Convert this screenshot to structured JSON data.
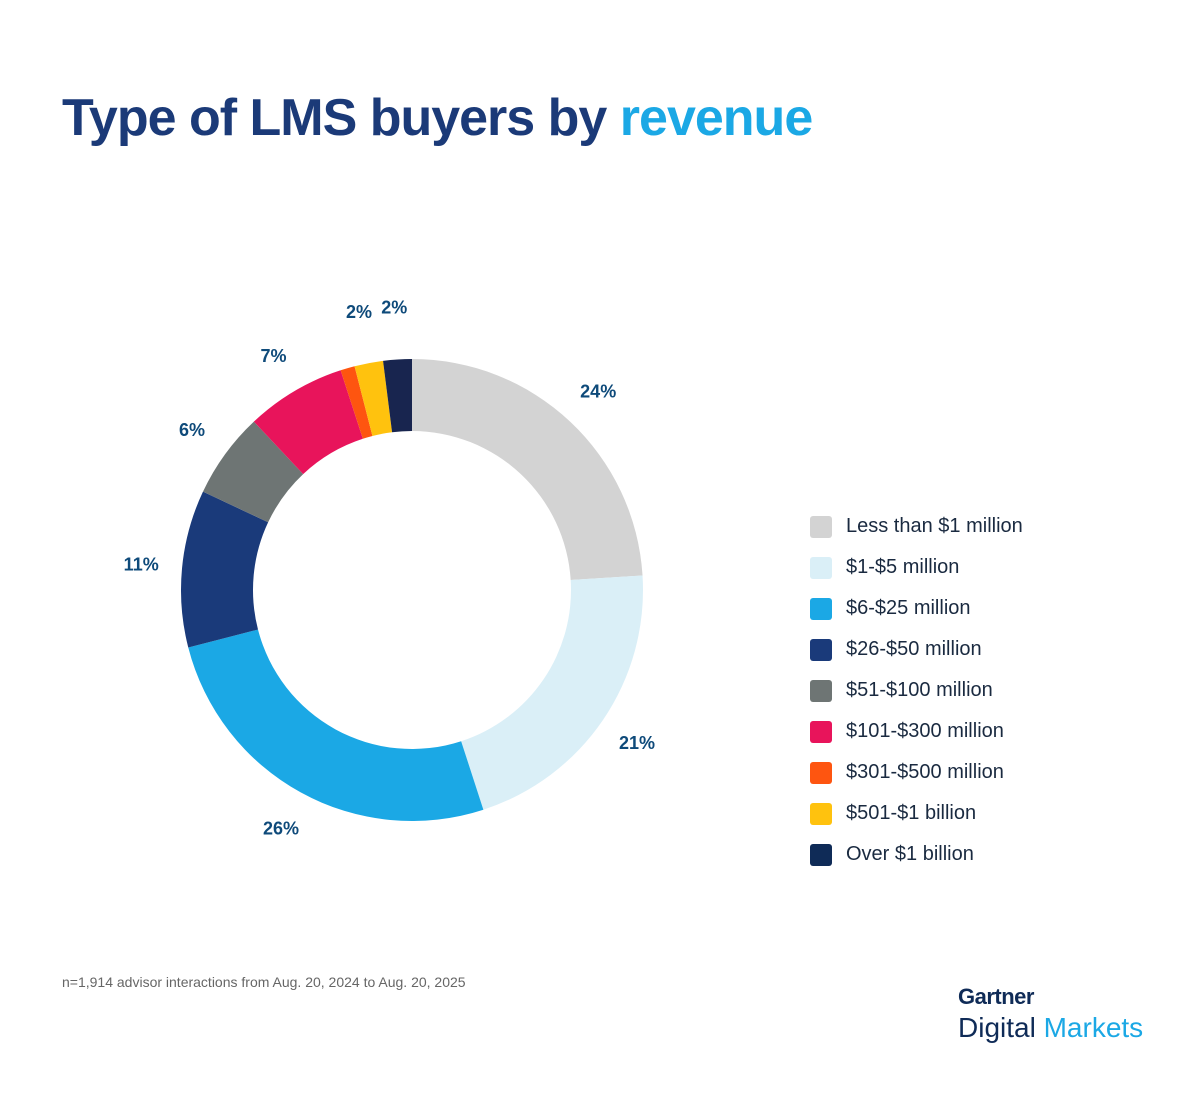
{
  "title": {
    "main": "Type of LMS buyers by ",
    "highlight": "revenue"
  },
  "chart_data": {
    "type": "pie",
    "variant": "donut",
    "categories": [
      "Less than $1 million",
      "$1-$5 million",
      "$6-$25 million",
      "$26-$50 million",
      "$51-$100 million",
      "$101-$300 million",
      "$301-$500 million",
      "$501-$1 billion",
      "Over $1 billion"
    ],
    "values": [
      24,
      21,
      26,
      11,
      6,
      7,
      1,
      2,
      2
    ],
    "data_labels": [
      "24%",
      "21%",
      "26%",
      "11%",
      "6%",
      "7%",
      "",
      "2%",
      "2%"
    ],
    "colors": [
      "#d3d3d3",
      "#daeff7",
      "#1ba8e5",
      "#1a3a7a",
      "#6e7574",
      "#e8145b",
      "#fe5510",
      "#ffc20e",
      "#18254f"
    ],
    "legend_position": "right"
  },
  "legend_colors": [
    "#d3d3d3",
    "#daeff7",
    "#1ba8e5",
    "#1a3a7a",
    "#6e7574",
    "#e8145b",
    "#fe5510",
    "#ffc20e",
    "#0f2b57"
  ],
  "footnote": "n=1,914 advisor interactions from Aug. 20, 2024 to Aug. 20, 2025",
  "logo": {
    "brand": "Gartner",
    "product_a": "Digital",
    "product_b": "Markets"
  }
}
